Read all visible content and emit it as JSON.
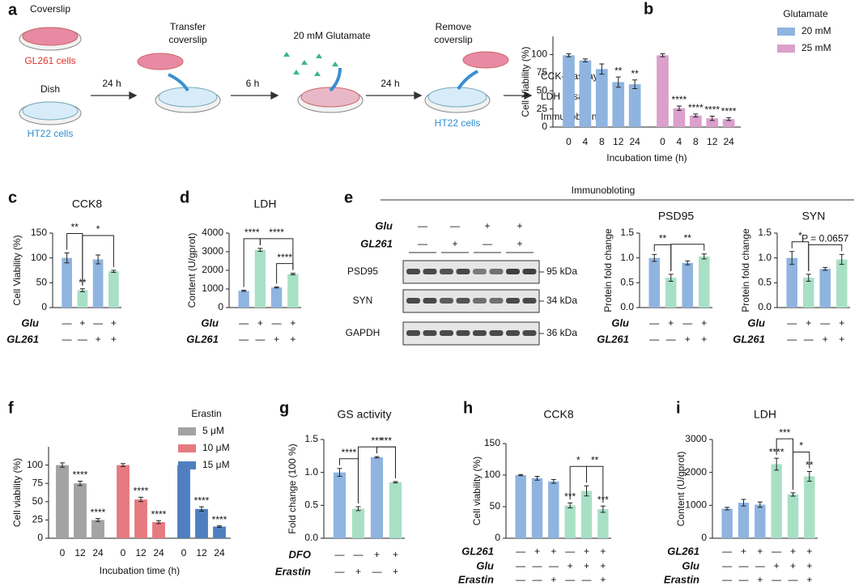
{
  "schematic": {
    "panel": "a",
    "coverslip": "Coverslip",
    "gl261": "GL261 cells",
    "dish": "Dish",
    "ht22": "HT22 cells",
    "step1": "24 h",
    "transfer": [
      "Transfer",
      "coverslip"
    ],
    "step2": "6 h",
    "glutamate": "20 mM Glutamate",
    "step3": "24 h",
    "remove": [
      "Remove",
      "coverslip"
    ],
    "ht22_result": "HT22 cells",
    "assays": [
      "CCK-8 assay",
      "LDH assay",
      "Immunoboting"
    ]
  },
  "blot": {
    "panel": "e",
    "title": "Immunobloting",
    "conditions": [
      {
        "label": "Glu",
        "values": [
          "—",
          "—",
          "+",
          "+"
        ]
      },
      {
        "label": "GL261",
        "values": [
          "—",
          "+",
          "—",
          "+"
        ]
      }
    ],
    "proteins": [
      "PSD95",
      "SYN",
      "GAPDH"
    ],
    "sizes": [
      "95 kDa",
      "34 kDa",
      "36 kDa"
    ]
  },
  "chart_data": [
    {
      "type": "bar",
      "panel": "b",
      "ylabel": "Cell Viability (%)",
      "xlabel": "Incubation time (h)",
      "legend_title": "Glutamate",
      "categories": [
        "0",
        "4",
        "8",
        "12",
        "24"
      ],
      "ylim": [
        0,
        125
      ],
      "yticks": [
        0,
        25,
        50,
        75,
        100
      ],
      "series": [
        {
          "name": "20 mM",
          "color": "#8fb4e0",
          "values": [
            99,
            92,
            80,
            62,
            59
          ],
          "errors": [
            2,
            2,
            7,
            7,
            6
          ],
          "sig_labels": [
            null,
            null,
            null,
            "**",
            "**"
          ]
        },
        {
          "name": "25 mM",
          "color": "#dba0cc",
          "values": [
            99,
            26,
            16,
            12,
            11
          ],
          "errors": [
            2,
            3,
            2,
            3,
            2
          ],
          "sig_labels": [
            null,
            "****",
            "****",
            "****",
            "****"
          ]
        }
      ]
    },
    {
      "type": "bar",
      "panel": "c",
      "title": "CCK8",
      "ylabel": "Cell Viability (%)",
      "ylim": [
        0,
        150
      ],
      "yticks": [
        0,
        50,
        100,
        150
      ],
      "values": [
        100,
        35,
        97,
        73
      ],
      "errors": [
        10,
        3,
        9,
        2
      ],
      "colors": [
        "#8fb4e0",
        "#a8e0c6",
        "#8fb4e0",
        "#a8e0c6"
      ],
      "sig_labels": [
        null,
        "**",
        null,
        null
      ],
      "brackets": [
        {
          "from": 0,
          "to": 1,
          "label": "**"
        },
        {
          "from": 1,
          "to": 3,
          "label": "*"
        }
      ],
      "conditions": [
        {
          "label": "Glu",
          "values": [
            "—",
            "+",
            "—",
            "+"
          ]
        },
        {
          "label": "GL261",
          "values": [
            "—",
            "—",
            "+",
            "+"
          ]
        }
      ]
    },
    {
      "type": "bar",
      "panel": "d",
      "title": "LDH",
      "ylabel": "Content (U/gprot)",
      "ylim": [
        0,
        4000
      ],
      "yticks": [
        0,
        1000,
        2000,
        3000,
        4000
      ],
      "values": [
        900,
        3100,
        1080,
        1800
      ],
      "errors": [
        30,
        80,
        30,
        40
      ],
      "colors": [
        "#8fb4e0",
        "#a8e0c6",
        "#8fb4e0",
        "#a8e0c6"
      ],
      "brackets": [
        {
          "from": 0,
          "to": 1,
          "label": "****"
        },
        {
          "from": 1,
          "to": 3,
          "label": "****"
        },
        {
          "from": 2,
          "to": 3,
          "label": "****"
        }
      ],
      "conditions": [
        {
          "label": "Glu",
          "values": [
            "—",
            "+",
            "—",
            "+"
          ]
        },
        {
          "label": "GL261",
          "values": [
            "—",
            "—",
            "+",
            "+"
          ]
        }
      ]
    },
    {
      "type": "bar",
      "title": "PSD95",
      "ylabel": "Protein fold change",
      "ylim": [
        0,
        1.5
      ],
      "yticks": [
        {
          "value": 0,
          "label": "0.0"
        },
        {
          "value": 0.5,
          "label": "0.5"
        },
        {
          "value": 1,
          "label": "1.0"
        },
        {
          "value": 1.5,
          "label": "1.5"
        }
      ],
      "values": [
        1.0,
        0.6,
        0.9,
        1.03
      ],
      "errors": [
        0.07,
        0.07,
        0.04,
        0.05
      ],
      "colors": [
        "#8fb4e0",
        "#a8e0c6",
        "#8fb4e0",
        "#a8e0c6"
      ],
      "brackets": [
        {
          "from": 0,
          "to": 1,
          "label": "**"
        },
        {
          "from": 1,
          "to": 3,
          "label": "**"
        }
      ],
      "conditions": [
        {
          "label": "Glu",
          "values": [
            "—",
            "+",
            "—",
            "+"
          ]
        },
        {
          "label": "GL261",
          "values": [
            "—",
            "—",
            "+",
            "+"
          ]
        }
      ]
    },
    {
      "type": "bar",
      "title": "SYN",
      "ylabel": "Protein fold change",
      "ylim": [
        0,
        1.5
      ],
      "yticks": [
        {
          "value": 0,
          "label": "0.0"
        },
        {
          "value": 0.5,
          "label": "0.5"
        },
        {
          "value": 1,
          "label": "1.0"
        },
        {
          "value": 1.5,
          "label": "1.5"
        }
      ],
      "values": [
        1.0,
        0.6,
        0.78,
        0.97
      ],
      "errors": [
        0.13,
        0.07,
        0.03,
        0.1
      ],
      "colors": [
        "#8fb4e0",
        "#a8e0c6",
        "#8fb4e0",
        "#a8e0c6"
      ],
      "brackets": [
        {
          "from": 0,
          "to": 1,
          "label": "*"
        },
        {
          "from": 1,
          "to": 3,
          "label": "P = 0.0657"
        }
      ],
      "conditions": [
        {
          "label": "Glu",
          "values": [
            "—",
            "+",
            "—",
            "+"
          ]
        },
        {
          "label": "GL261",
          "values": [
            "—",
            "—",
            "+",
            "+"
          ]
        }
      ]
    },
    {
      "type": "bar",
      "panel": "f",
      "ylabel": "Cell viability (%)",
      "xlabel": "Incubation time (h)",
      "legend_title": "Erastin",
      "categories": [
        "0",
        "12",
        "24"
      ],
      "ylim": [
        0,
        125
      ],
      "yticks": [
        0,
        25,
        50,
        75,
        100
      ],
      "series": [
        {
          "name": "5 μM",
          "color": "#a3a3a6",
          "values": [
            100,
            75,
            25
          ],
          "errors": [
            3,
            3,
            2
          ],
          "sig_labels": [
            null,
            "****",
            "****"
          ]
        },
        {
          "name": "10 μM",
          "color": "#e57b80",
          "values": [
            100,
            53,
            22
          ],
          "errors": [
            2,
            3,
            2
          ],
          "sig_labels": [
            null,
            "****",
            "****"
          ]
        },
        {
          "name": "15 μM",
          "color": "#4f7fc0",
          "values": [
            100,
            40,
            16
          ],
          "errors": [
            4,
            3,
            1
          ],
          "sig_labels": [
            null,
            "****",
            "****"
          ]
        }
      ]
    },
    {
      "type": "bar",
      "panel": "g",
      "title": "GS activity",
      "ylabel": "Fold change (100 %)",
      "ylim": [
        0,
        1.5
      ],
      "yticks": [
        {
          "value": 0,
          "label": "0.0"
        },
        {
          "value": 0.5,
          "label": "0.5"
        },
        {
          "value": 1,
          "label": "1.0"
        },
        {
          "value": 1.5,
          "label": "1.5"
        }
      ],
      "values": [
        1.0,
        0.45,
        1.23,
        0.85
      ],
      "errors": [
        0.06,
        0.03,
        0.01,
        0.01
      ],
      "colors": [
        "#8fb4e0",
        "#a8e0c6",
        "#8fb4e0",
        "#a8e0c6"
      ],
      "brackets": [
        {
          "from": 0,
          "to": 1,
          "label": "****"
        },
        {
          "from": 1,
          "to": 3,
          "label": "***"
        },
        {
          "from": 2,
          "to": 3,
          "label": "***"
        }
      ],
      "conditions": [
        {
          "label": "DFO",
          "values": [
            "—",
            "—",
            "+",
            "+"
          ]
        },
        {
          "label": "Erastin",
          "values": [
            "—",
            "+",
            "—",
            "+"
          ]
        }
      ]
    },
    {
      "type": "bar",
      "panel": "h",
      "title": "CCK8",
      "ylabel": "Cell viability (%)",
      "ylim": [
        0,
        150
      ],
      "yticks": [
        0,
        50,
        100,
        150
      ],
      "values": [
        100,
        95,
        90,
        52,
        75,
        46
      ],
      "errors": [
        1,
        3,
        3,
        4,
        8,
        5
      ],
      "colors": [
        "#8fb4e0",
        "#8fb4e0",
        "#8fb4e0",
        "#a8e0c6",
        "#a8e0c6",
        "#a8e0c6"
      ],
      "sig_labels": [
        null,
        null,
        null,
        "***",
        null,
        "***"
      ],
      "brackets": [
        {
          "from": 3,
          "to": 4,
          "label": "*"
        },
        {
          "from": 4,
          "to": 5,
          "label": "**"
        }
      ],
      "conditions": [
        {
          "label": "GL261",
          "values": [
            "—",
            "+",
            "+",
            "—",
            "+",
            "+"
          ]
        },
        {
          "label": "Glu",
          "values": [
            "—",
            "—",
            "—",
            "+",
            "+",
            "+"
          ]
        },
        {
          "label": "Erastin",
          "values": [
            "—",
            "—",
            "+",
            "—",
            "—",
            "+"
          ]
        }
      ]
    },
    {
      "type": "bar",
      "panel": "i",
      "title": "LDH",
      "ylabel": "Content (U/gprot)",
      "ylim": [
        0,
        3000
      ],
      "yticks": [
        0,
        1000,
        2000,
        3000
      ],
      "values": [
        900,
        1080,
        1020,
        2250,
        1330,
        1880
      ],
      "errors": [
        40,
        100,
        80,
        180,
        50,
        150
      ],
      "colors": [
        "#8fb4e0",
        "#8fb4e0",
        "#8fb4e0",
        "#a8e0c6",
        "#a8e0c6",
        "#a8e0c6"
      ],
      "sig_labels": [
        null,
        null,
        null,
        "****",
        null,
        "**"
      ],
      "brackets": [
        {
          "from": 3,
          "to": 4,
          "label": "***"
        },
        {
          "from": 4,
          "to": 5,
          "label": "*"
        }
      ],
      "conditions": [
        {
          "label": "GL261",
          "values": [
            "—",
            "+",
            "+",
            "—",
            "+",
            "+"
          ]
        },
        {
          "label": "Glu",
          "values": [
            "—",
            "—",
            "—",
            "+",
            "+",
            "+"
          ]
        },
        {
          "label": "Erastin",
          "values": [
            "—",
            "—",
            "+",
            "—",
            "—",
            "+"
          ]
        }
      ]
    }
  ]
}
